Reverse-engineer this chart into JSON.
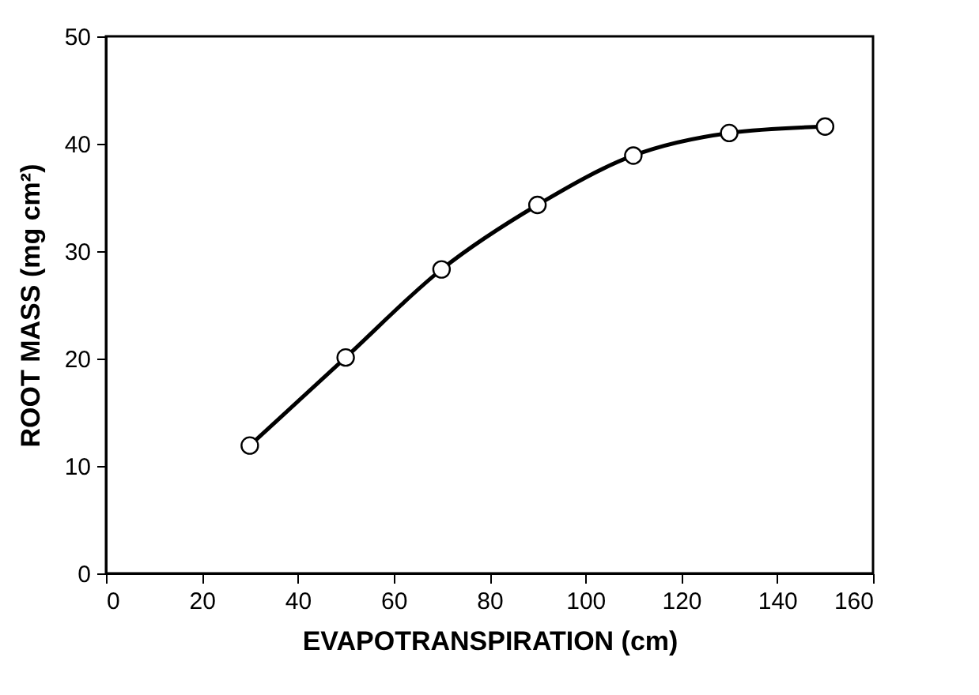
{
  "chart_data": {
    "type": "line",
    "xlabel": "EVAPOTRANSPIRATION (cm)",
    "ylabel": "ROOT MASS (mg cm²)",
    "x": [
      30,
      50,
      70,
      90,
      110,
      130,
      150
    ],
    "series": [
      {
        "color": "#000000",
        "values": [
          11.9,
          20.1,
          28.3,
          34.3,
          38.9,
          41.0,
          41.6
        ]
      }
    ],
    "marker": "circle",
    "line_style": "solid",
    "grid": false,
    "xlim": [
      0,
      160
    ],
    "xticks": [
      0,
      20,
      40,
      60,
      80,
      100,
      120,
      140,
      160
    ],
    "ylim": [
      0,
      50
    ],
    "yticks": [
      0,
      10,
      20,
      30,
      40,
      50
    ]
  }
}
